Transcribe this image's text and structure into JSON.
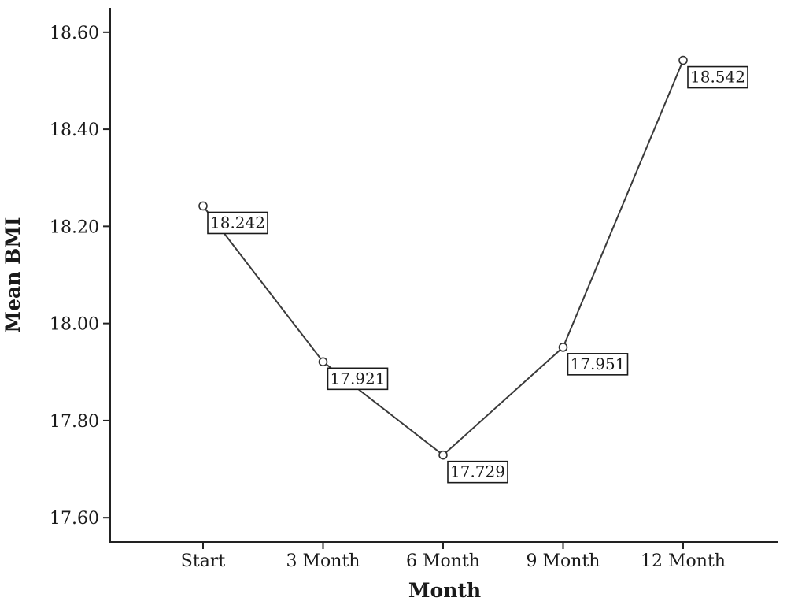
{
  "chart_data": {
    "type": "line",
    "categories": [
      "Start",
      "3 Month",
      "6 Month",
      "9 Month",
      "12 Month"
    ],
    "values": [
      18.242,
      17.921,
      17.729,
      17.951,
      18.542
    ],
    "data_labels": [
      "18.242",
      "17.921",
      "17.729",
      "17.951",
      "18.542"
    ],
    "xlabel": "Month",
    "ylabel": "Mean BMI",
    "ylim": [
      17.55,
      18.65
    ],
    "yticks": [
      17.6,
      17.8,
      18.0,
      18.2,
      18.4,
      18.6
    ],
    "ytick_labels": [
      "17.60",
      "17.80",
      "18.00",
      "18.20",
      "18.40",
      "18.60"
    ],
    "grid": false,
    "legend": "none",
    "colors": {
      "line": "#3a3a3a",
      "marker_fill": "#ffffff",
      "axis": "#222222"
    }
  }
}
